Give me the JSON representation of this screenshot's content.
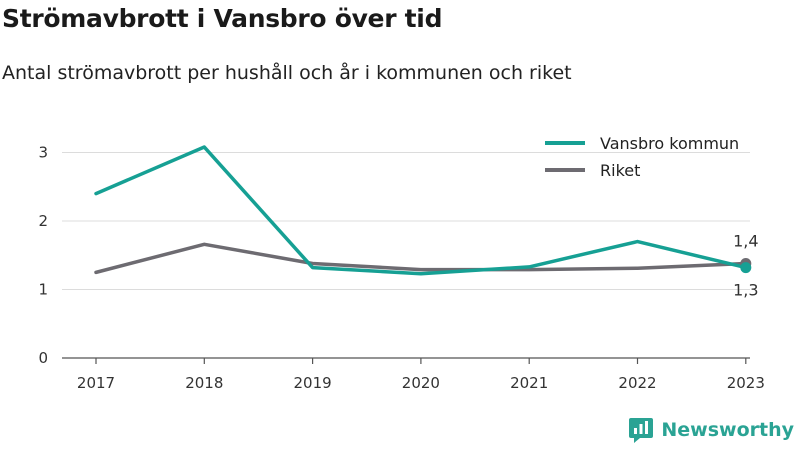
{
  "title": "Strömavbrott i Vansbro över tid",
  "subtitle": "Antal strömavbrott per hushåll och år i kommunen och riket",
  "brand": {
    "name": "Newsworthy",
    "color": "#2aa394"
  },
  "chart_data": {
    "type": "line",
    "categories": [
      "2017",
      "2018",
      "2019",
      "2020",
      "2021",
      "2022",
      "2023"
    ],
    "ylim": [
      0,
      3.5
    ],
    "yticks": [
      "0",
      "1",
      "2",
      "3"
    ],
    "grid": true,
    "legend_position": "top-right",
    "series": [
      {
        "name": "Vansbro kommun",
        "color": "#16a094",
        "values": [
          2.4,
          3.08,
          1.32,
          1.23,
          1.33,
          1.7,
          1.32
        ],
        "end_label": "1,3"
      },
      {
        "name": "Riket",
        "color": "#6d6b71",
        "values": [
          1.25,
          1.66,
          1.38,
          1.29,
          1.29,
          1.31,
          1.38
        ],
        "end_label": "1,4"
      }
    ]
  }
}
